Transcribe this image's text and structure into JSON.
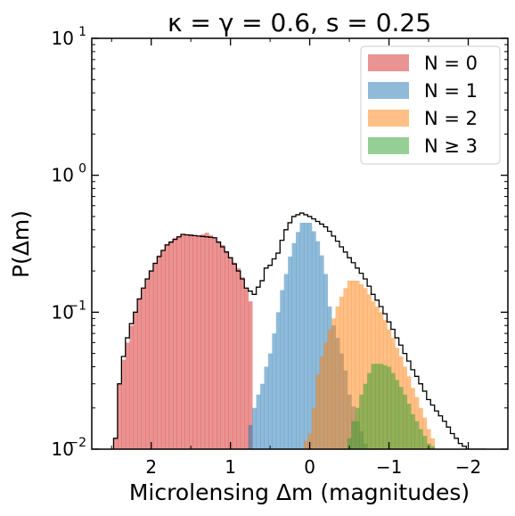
{
  "chart_data": {
    "type": "histogram",
    "title": "κ = γ = 0.6, s = 0.25",
    "xlabel": "Microlensing Δm (magnitudes)",
    "ylabel": "P(Δm)",
    "xlim": [
      2.75,
      -2.5
    ],
    "ylim": [
      0.01,
      10
    ],
    "yscale": "log",
    "x_inverted": true,
    "bin_width": 0.05,
    "grid": false,
    "legend_position": "top-right",
    "x_ticks": [
      2,
      1,
      0,
      -1,
      -2
    ],
    "x_tick_labels": [
      "2",
      "1",
      "0",
      "−1",
      "−2"
    ],
    "y_ticks": [
      0.01,
      0.1,
      1,
      10
    ],
    "y_tick_labels": [
      {
        "base": "10",
        "exp": "−2"
      },
      {
        "base": "10",
        "exp": "−1"
      },
      {
        "base": "10",
        "exp": "0"
      },
      {
        "base": "10",
        "exp": "1"
      }
    ],
    "series": [
      {
        "name": "N = 0",
        "color": "#d62728",
        "style": "filled",
        "alpha": 0.5,
        "x": [
          2.45,
          2.4,
          2.3,
          2.2,
          2.1,
          2.0,
          1.9,
          1.8,
          1.7,
          1.6,
          1.5,
          1.4,
          1.3,
          1.2,
          1.1,
          1.0,
          0.9,
          0.8,
          0.75
        ],
        "y": [
          0.012,
          0.03,
          0.06,
          0.1,
          0.15,
          0.2,
          0.26,
          0.31,
          0.35,
          0.37,
          0.37,
          0.36,
          0.38,
          0.35,
          0.31,
          0.25,
          0.21,
          0.15,
          0.12
        ]
      },
      {
        "name": "N = 1",
        "color": "#1f77b4",
        "style": "filled",
        "alpha": 0.5,
        "x": [
          0.75,
          0.7,
          0.6,
          0.5,
          0.45,
          0.4,
          0.3,
          0.2,
          0.1,
          0.0,
          -0.1,
          -0.2,
          -0.25,
          -0.3,
          -0.4,
          -0.5,
          -0.6,
          -0.7,
          -0.75
        ],
        "y": [
          0.015,
          0.02,
          0.03,
          0.05,
          0.07,
          0.1,
          0.19,
          0.32,
          0.45,
          0.45,
          0.33,
          0.19,
          0.11,
          0.08,
          0.05,
          0.025,
          0.016,
          0.011,
          0.01
        ]
      },
      {
        "name": "N = 2",
        "color": "#ff7f0e",
        "style": "filled",
        "alpha": 0.5,
        "x": [
          0.1,
          0.0,
          -0.05,
          -0.1,
          -0.2,
          -0.3,
          -0.4,
          -0.5,
          -0.6,
          -0.7,
          -0.8,
          -0.9,
          -1.0,
          -1.1,
          -1.2,
          -1.3,
          -1.4,
          -1.5,
          -1.6
        ],
        "y": [
          0.01,
          0.013,
          0.02,
          0.035,
          0.06,
          0.09,
          0.13,
          0.17,
          0.17,
          0.15,
          0.12,
          0.1,
          0.075,
          0.055,
          0.04,
          0.028,
          0.02,
          0.014,
          0.01
        ]
      },
      {
        "name": "N ≥ 3",
        "color": "#2ca02c",
        "style": "filled",
        "alpha": 0.5,
        "x": [
          -0.5,
          -0.6,
          -0.7,
          -0.8,
          -0.9,
          -1.0,
          -1.1,
          -1.2,
          -1.3,
          -1.4,
          -1.5,
          -1.6
        ],
        "y": [
          0.012,
          0.02,
          0.03,
          0.042,
          0.042,
          0.04,
          0.032,
          0.025,
          0.018,
          0.014,
          0.011,
          0.01
        ]
      },
      {
        "style": "step",
        "color": "#000000",
        "x": [
          2.45,
          2.4,
          2.2,
          2.0,
          1.8,
          1.6,
          1.4,
          1.2,
          1.0,
          0.8,
          0.7,
          0.6,
          0.6,
          0.5,
          0.4,
          0.3,
          0.2,
          0.1,
          0.0,
          -0.1,
          -0.2,
          -0.3,
          -0.4,
          -0.5,
          -0.6,
          -0.7,
          -0.8,
          -0.9,
          -1.0,
          -1.1,
          -1.2,
          -1.3,
          -1.4,
          -1.5,
          -1.6,
          -1.7,
          -1.8,
          -1.9,
          -2.0,
          -2.1,
          -2.2
        ],
        "y": [
          0.012,
          0.03,
          0.1,
          0.2,
          0.31,
          0.37,
          0.36,
          0.35,
          0.25,
          0.15,
          0.135,
          0.17,
          0.2,
          0.22,
          0.27,
          0.4,
          0.5,
          0.53,
          0.5,
          0.46,
          0.42,
          0.36,
          0.3,
          0.25,
          0.21,
          0.175,
          0.135,
          0.11,
          0.085,
          0.065,
          0.05,
          0.038,
          0.03,
          0.023,
          0.019,
          0.016,
          0.013,
          0.011,
          0.01,
          0.01,
          0.01
        ]
      }
    ],
    "legend": [
      {
        "label": "N = 0",
        "color": "#d62728"
      },
      {
        "label": "N = 1",
        "color": "#1f77b4"
      },
      {
        "label": "N = 2",
        "color": "#ff7f0e"
      },
      {
        "label": "N ≥ 3",
        "color": "#2ca02c"
      }
    ]
  }
}
